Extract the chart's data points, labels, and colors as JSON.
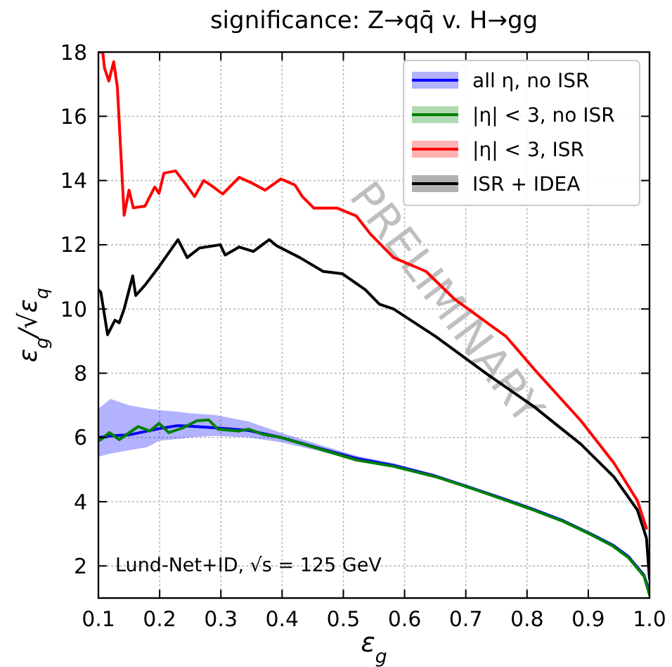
{
  "chart_data": {
    "type": "line",
    "title": "significance: Z→qq̄ v. H→gg",
    "xlabel": "ε$_{g}$",
    "ylabel": "ε$_{g}$/√ε$_{q}$",
    "xlim": [
      0.1,
      1.0
    ],
    "ylim": [
      1,
      18
    ],
    "xticks": [
      0.1,
      0.2,
      0.3,
      0.4,
      0.5,
      0.6,
      0.7,
      0.8,
      0.9,
      {
        "value": 1.0,
        "label": "1.0"
      }
    ],
    "yticks": [
      2,
      4,
      6,
      8,
      10,
      12,
      14,
      16,
      18
    ],
    "grid": true,
    "legend": "top right",
    "line_style": "solid",
    "annotations": [
      "Lund-Net+ID, √s = 125 GeV",
      "PRELIMINARY"
    ],
    "series": [
      {
        "name": "all η, no ISR",
        "color": "#0000ff",
        "x": [
          0.1,
          0.12,
          0.15,
          0.18,
          0.2,
          0.23,
          0.25,
          0.29,
          0.345,
          0.398,
          0.46,
          0.521,
          0.582,
          0.65,
          0.712,
          0.76,
          0.812,
          0.86,
          0.904,
          0.94,
          0.965,
          0.991,
          1.0
        ],
        "values": [
          6.0,
          6.05,
          6.08,
          6.2,
          6.28,
          6.37,
          6.35,
          6.3,
          6.22,
          6.0,
          5.67,
          5.35,
          5.13,
          4.8,
          4.41,
          4.1,
          3.75,
          3.4,
          3.0,
          2.65,
          2.3,
          1.71,
          1.2
        ],
        "lower": [
          5.4,
          5.5,
          5.6,
          5.7,
          5.9,
          5.95,
          6.0,
          6.05,
          6.0,
          5.85,
          5.58,
          5.27,
          5.07,
          4.75,
          4.36,
          4.06,
          3.71,
          3.36,
          2.96,
          2.61,
          2.26,
          1.67,
          1.15
        ],
        "upper": [
          6.9,
          7.2,
          7.0,
          6.9,
          6.85,
          6.8,
          6.75,
          6.7,
          6.5,
          6.15,
          5.78,
          5.43,
          5.2,
          4.85,
          4.46,
          4.14,
          3.79,
          3.44,
          3.04,
          2.69,
          2.34,
          1.75,
          1.25
        ]
      },
      {
        "name": "|η| < 3, no ISR",
        "color": "#008000",
        "x": [
          0.1,
          0.104,
          0.118,
          0.134,
          0.165,
          0.184,
          0.199,
          0.215,
          0.238,
          0.261,
          0.28,
          0.295,
          0.33,
          0.345,
          0.368,
          0.398,
          0.46,
          0.521,
          0.582,
          0.65,
          0.712,
          0.76,
          0.812,
          0.86,
          0.904,
          0.94,
          0.965,
          0.991,
          1.0
        ],
        "values": [
          5.9,
          5.93,
          6.15,
          5.93,
          6.34,
          6.2,
          6.44,
          6.15,
          6.3,
          6.52,
          6.55,
          6.26,
          6.2,
          6.26,
          6.1,
          6.0,
          5.65,
          5.3,
          5.1,
          4.78,
          4.4,
          4.08,
          3.73,
          3.38,
          2.98,
          2.62,
          2.27,
          1.68,
          1.1
        ]
      },
      {
        "name": "|η| < 3, ISR",
        "color": "#ff0000",
        "x": [
          0.1,
          0.107,
          0.11,
          0.117,
          0.125,
          0.131,
          0.142,
          0.15,
          0.157,
          0.176,
          0.192,
          0.199,
          0.207,
          0.226,
          0.242,
          0.257,
          0.272,
          0.284,
          0.303,
          0.33,
          0.353,
          0.372,
          0.398,
          0.421,
          0.433,
          0.452,
          0.49,
          0.521,
          0.544,
          0.582,
          0.635,
          0.682,
          0.735,
          0.766,
          0.812,
          0.888,
          0.942,
          0.98,
          0.995
        ],
        "values": [
          18,
          18,
          17.5,
          17.1,
          17.7,
          16.9,
          12.92,
          13.7,
          13.15,
          13.2,
          13.8,
          13.6,
          14.23,
          14.3,
          13.9,
          13.5,
          14.0,
          13.85,
          13.58,
          14.1,
          13.9,
          13.7,
          14.05,
          13.86,
          13.5,
          13.14,
          13.14,
          12.9,
          12.34,
          11.6,
          11.17,
          10.3,
          9.57,
          9.14,
          8.12,
          6.52,
          5.2,
          4.04,
          3.17
        ]
      },
      {
        "name": "ISR + IDEA",
        "color": "#000000",
        "x": [
          0.1,
          0.104,
          0.115,
          0.127,
          0.134,
          0.142,
          0.156,
          0.161,
          0.176,
          0.199,
          0.23,
          0.245,
          0.265,
          0.299,
          0.307,
          0.33,
          0.353,
          0.379,
          0.391,
          0.429,
          0.467,
          0.498,
          0.536,
          0.559,
          0.582,
          0.651,
          0.735,
          0.812,
          0.888,
          0.942,
          0.98,
          0.995,
          1.0
        ],
        "values": [
          10.6,
          10.52,
          9.2,
          9.65,
          9.57,
          10.0,
          11.03,
          10.42,
          10.74,
          11.32,
          12.16,
          11.6,
          11.9,
          12.0,
          11.68,
          11.93,
          11.79,
          12.16,
          11.97,
          11.6,
          11.17,
          11.1,
          10.6,
          10.15,
          10.0,
          9.14,
          7.97,
          6.95,
          5.79,
          4.77,
          3.75,
          2.87,
          1.6
        ]
      }
    ]
  }
}
